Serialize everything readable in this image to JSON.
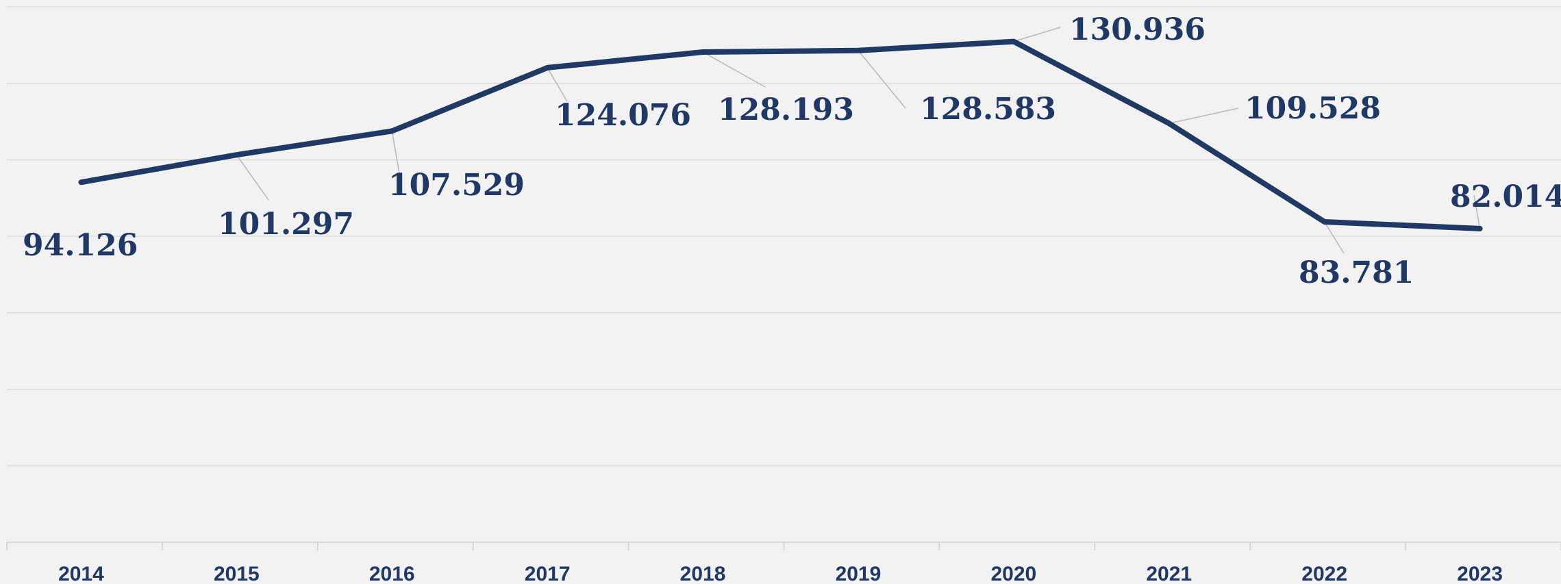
{
  "chart_data": {
    "type": "line",
    "categories": [
      "2014",
      "2015",
      "2016",
      "2017",
      "2018",
      "2019",
      "2020",
      "2021",
      "2022",
      "2023"
    ],
    "series": [
      {
        "values": [
          94.126,
          101.297,
          107.529,
          124.076,
          128.193,
          128.583,
          130.936,
          109.528,
          83.781,
          82.014
        ],
        "data_labels": [
          "94.126",
          "101.297",
          "107.529",
          "124.076",
          "128.193",
          "128.583",
          "130.936",
          "109.528",
          "83.781",
          "82.014"
        ],
        "color": "#1f3864"
      }
    ],
    "ylim": [
      0,
      140
    ],
    "grid": true,
    "legend": "none",
    "title": "",
    "xlabel": "",
    "ylabel": ""
  }
}
